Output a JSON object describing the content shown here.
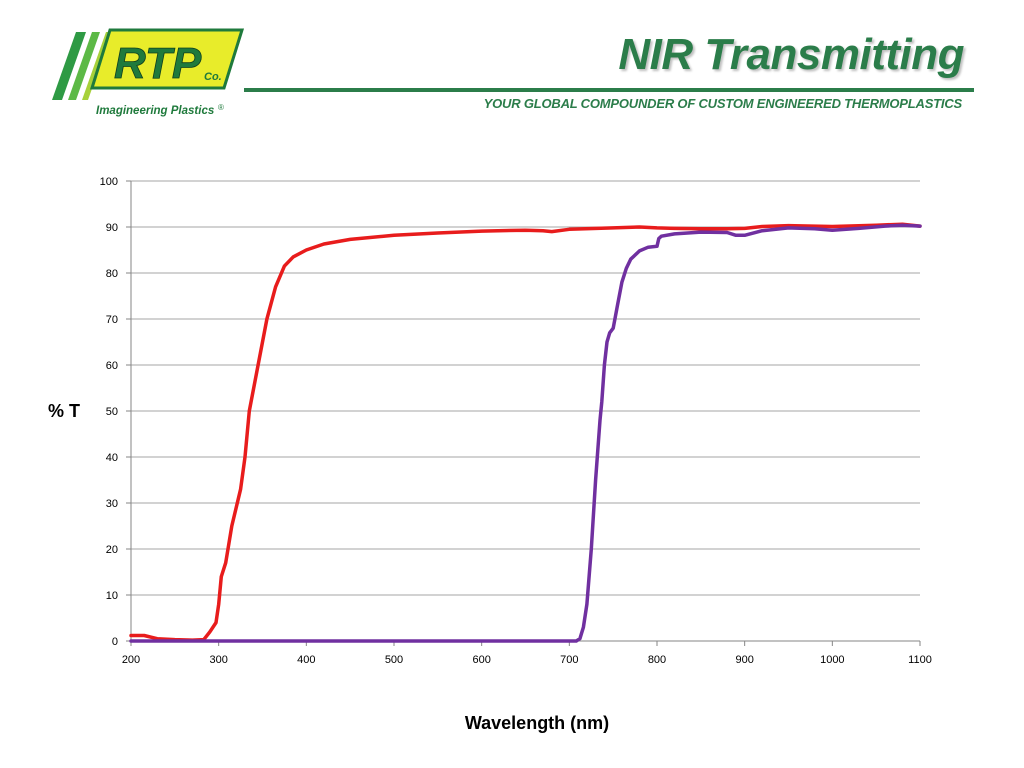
{
  "header": {
    "title": "NIR Transmitting",
    "tagline": "YOUR GLOBAL COMPOUNDER OF CUSTOM ENGINEERED THERMOPLASTICS"
  },
  "logo": {
    "brand": "RTP",
    "suffix": "Co.",
    "caption": "Imagineering Plastics",
    "registered": "®"
  },
  "colors": {
    "brand_green": "#2b7d4a",
    "logo_yellow": "#e8ec2a",
    "logo_green": "#2e9a44",
    "logo_lime": "#a7d13a",
    "logo_text": "#1f7a3c"
  },
  "chart_data": {
    "type": "line",
    "title": "",
    "xlabel": "Wavelength (nm)",
    "ylabel": "% T",
    "xlim": [
      200,
      1100
    ],
    "ylim": [
      0,
      100
    ],
    "xticks": [
      200,
      300,
      400,
      500,
      600,
      700,
      800,
      900,
      1000,
      1100
    ],
    "yticks": [
      0,
      10,
      20,
      30,
      40,
      50,
      60,
      70,
      80,
      90,
      100
    ],
    "grid": "horizontal",
    "legend": "none",
    "series": [
      {
        "color": "#e81c1c",
        "points": [
          [
            200,
            1.2
          ],
          [
            215,
            1.2
          ],
          [
            230,
            0.5
          ],
          [
            250,
            0.3
          ],
          [
            270,
            0.2
          ],
          [
            283,
            0.3
          ],
          [
            290,
            2.0
          ],
          [
            297,
            4.0
          ],
          [
            300,
            8.0
          ],
          [
            303,
            14.0
          ],
          [
            308,
            17.0
          ],
          [
            315,
            25.0
          ],
          [
            325,
            33.0
          ],
          [
            330,
            40.0
          ],
          [
            335,
            50.0
          ],
          [
            345,
            60.0
          ],
          [
            355,
            70.0
          ],
          [
            365,
            77.0
          ],
          [
            375,
            81.5
          ],
          [
            385,
            83.5
          ],
          [
            400,
            85.0
          ],
          [
            420,
            86.3
          ],
          [
            450,
            87.3
          ],
          [
            500,
            88.2
          ],
          [
            550,
            88.7
          ],
          [
            600,
            89.1
          ],
          [
            650,
            89.3
          ],
          [
            670,
            89.2
          ],
          [
            680,
            89.0
          ],
          [
            700,
            89.5
          ],
          [
            750,
            89.8
          ],
          [
            780,
            90.0
          ],
          [
            800,
            89.8
          ],
          [
            820,
            89.7
          ],
          [
            850,
            89.6
          ],
          [
            880,
            89.6
          ],
          [
            900,
            89.7
          ],
          [
            920,
            90.1
          ],
          [
            950,
            90.3
          ],
          [
            1000,
            90.1
          ],
          [
            1050,
            90.4
          ],
          [
            1080,
            90.6
          ],
          [
            1100,
            90.2
          ]
        ]
      },
      {
        "color": "#7030a0",
        "points": [
          [
            200,
            0.0
          ],
          [
            700,
            0.0
          ],
          [
            708,
            0.0
          ],
          [
            712,
            0.5
          ],
          [
            716,
            3.0
          ],
          [
            720,
            8.0
          ],
          [
            725,
            20.0
          ],
          [
            730,
            35.0
          ],
          [
            735,
            48.0
          ],
          [
            737,
            52.0
          ],
          [
            740,
            60.0
          ],
          [
            743,
            65.0
          ],
          [
            746,
            67.0
          ],
          [
            750,
            68.0
          ],
          [
            755,
            73.0
          ],
          [
            760,
            78.0
          ],
          [
            765,
            81.0
          ],
          [
            770,
            83.0
          ],
          [
            780,
            84.8
          ],
          [
            790,
            85.6
          ],
          [
            800,
            85.8
          ],
          [
            802,
            87.5
          ],
          [
            805,
            88.0
          ],
          [
            820,
            88.5
          ],
          [
            850,
            88.9
          ],
          [
            880,
            88.8
          ],
          [
            890,
            88.2
          ],
          [
            900,
            88.2
          ],
          [
            920,
            89.2
          ],
          [
            950,
            89.8
          ],
          [
            980,
            89.6
          ],
          [
            1000,
            89.3
          ],
          [
            1030,
            89.7
          ],
          [
            1060,
            90.2
          ],
          [
            1080,
            90.4
          ],
          [
            1100,
            90.2
          ]
        ]
      }
    ]
  }
}
